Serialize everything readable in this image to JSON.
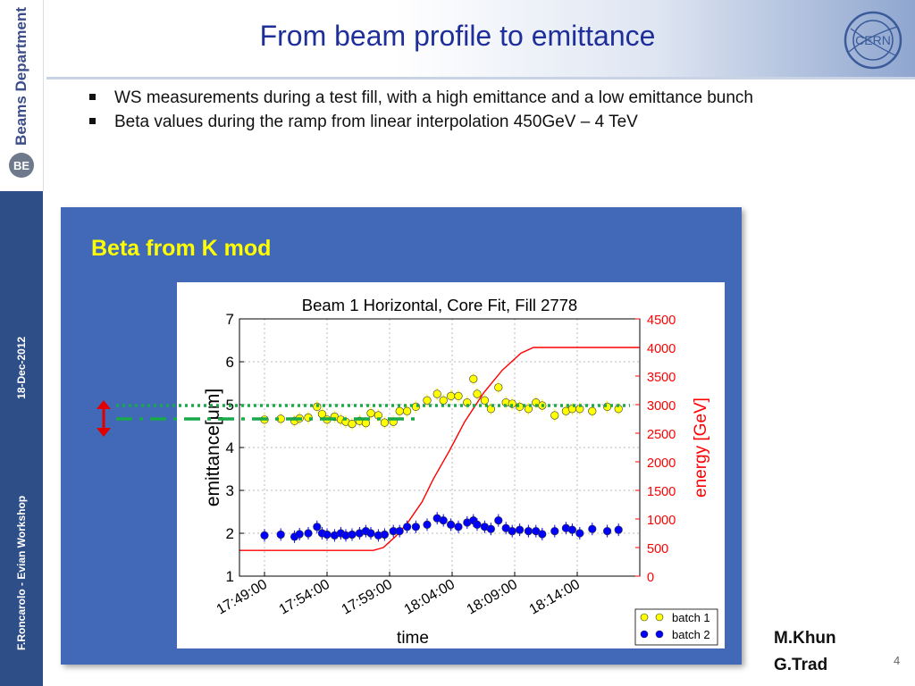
{
  "slide": {
    "title": "From beam profile to emittance",
    "department": "Beams Department",
    "dept_logo": "BE",
    "logo_text": "CERN",
    "side_author": "F.Roncarolo - Evian Workshop",
    "side_date": "18-Dec-2012",
    "bullets": [
      "WS measurements during a test fill, with a high emittance and a low emittance bunch",
      "Beta values during the ramp from linear interpolation 450GeV – 4 TeV"
    ],
    "panel_title": "Beta from K mod",
    "authors": [
      "M.Khun",
      "G.Trad"
    ],
    "page_number": "4",
    "colors": {
      "title": "#1f2f9a",
      "panel": "#4169b8",
      "panel_title": "#ffff00",
      "side_band": "#2e4e88"
    }
  },
  "chart_data": {
    "type": "scatter",
    "title": "Beam 1 Horizontal, Core Fit, Fill 2778",
    "xlabel": "time",
    "ylabel": "emittance[μm]",
    "y2label": "energy [GeV]",
    "xticks": [
      "17:49:00",
      "17:54:00",
      "17:59:00",
      "18:04:00",
      "18:09:00",
      "18:14:00"
    ],
    "x_range_min": [
      -2,
      30
    ],
    "ylim": [
      1,
      7
    ],
    "yticks": [
      1,
      2,
      3,
      4,
      5,
      6,
      7
    ],
    "y2lim": [
      0,
      4500
    ],
    "y2ticks": [
      0,
      500,
      1000,
      1500,
      2000,
      2500,
      3000,
      3500,
      4000,
      4500
    ],
    "grid": true,
    "legend_position": "bottom-right",
    "series": [
      {
        "name": "batch 1",
        "color": "#ffff00",
        "x": [
          0,
          1.3,
          2.4,
          2.8,
          3.5,
          4.2,
          4.6,
          5.0,
          5.6,
          6.1,
          6.5,
          7.0,
          7.6,
          8.1,
          8.5,
          9.1,
          9.6,
          10.3,
          10.8,
          11.4,
          12.1,
          13.0,
          13.8,
          14.3,
          14.9,
          15.5,
          16.2,
          16.7,
          17.0,
          17.6,
          18.1,
          18.7,
          19.3,
          19.8,
          20.4,
          21.1,
          21.7,
          22.2,
          23.2,
          24.1,
          24.6,
          25.2,
          26.2,
          27.4,
          28.3
        ],
        "y": [
          4.65,
          4.67,
          4.62,
          4.68,
          4.7,
          4.95,
          4.78,
          4.65,
          4.72,
          4.65,
          4.6,
          4.55,
          4.62,
          4.57,
          4.8,
          4.75,
          4.58,
          4.6,
          4.85,
          4.85,
          4.95,
          5.1,
          5.25,
          5.1,
          5.2,
          5.2,
          5.05,
          5.6,
          5.25,
          5.1,
          4.9,
          5.4,
          5.05,
          5.02,
          4.95,
          4.9,
          5.05,
          4.98,
          4.75,
          4.85,
          4.9,
          4.9,
          4.85,
          4.95,
          4.9
        ]
      },
      {
        "name": "batch 2",
        "color": "#0000ff",
        "x": [
          0,
          1.3,
          2.4,
          2.8,
          3.5,
          4.2,
          4.6,
          5.0,
          5.6,
          6.1,
          6.5,
          7.0,
          7.6,
          8.1,
          8.5,
          9.1,
          9.6,
          10.3,
          10.8,
          11.4,
          12.1,
          13.0,
          13.8,
          14.3,
          14.9,
          15.5,
          16.2,
          16.7,
          17.0,
          17.6,
          18.1,
          18.7,
          19.3,
          19.8,
          20.4,
          21.1,
          21.7,
          22.2,
          23.2,
          24.1,
          24.6,
          25.2,
          26.2,
          27.4,
          28.3
        ],
        "y": [
          1.95,
          1.97,
          1.92,
          1.98,
          2.0,
          2.15,
          2.0,
          1.97,
          1.95,
          2.0,
          1.95,
          1.97,
          2.0,
          2.05,
          2.0,
          1.95,
          1.97,
          2.05,
          2.05,
          2.15,
          2.15,
          2.2,
          2.35,
          2.3,
          2.2,
          2.15,
          2.25,
          2.3,
          2.2,
          2.15,
          2.1,
          2.3,
          2.12,
          2.05,
          2.08,
          2.05,
          2.05,
          1.98,
          2.05,
          2.12,
          2.08,
          2.0,
          2.1,
          2.05,
          2.08
        ]
      },
      {
        "name": "energy",
        "color": "#ff0000",
        "axis": "right",
        "x": [
          -2,
          8.7,
          9.5,
          10.5,
          11.5,
          12.6,
          13.5,
          14.8,
          16.0,
          17.5,
          19.0,
          20.5,
          21.5,
          22.3,
          23.0,
          30
        ],
        "y": [
          450,
          450,
          500,
          700,
          950,
          1300,
          1700,
          2200,
          2700,
          3200,
          3600,
          3900,
          4000,
          4000,
          4000,
          4000
        ]
      }
    ]
  }
}
